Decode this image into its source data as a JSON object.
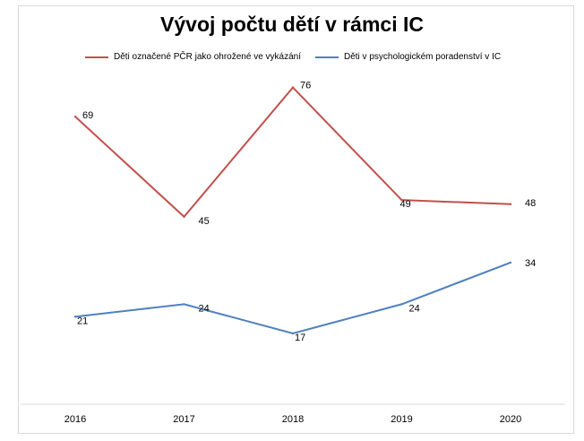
{
  "chart_data": {
    "type": "line",
    "title": "Vývoj počtu dětí v rámci IC",
    "categories": [
      "2016",
      "2017",
      "2018",
      "2019",
      "2020"
    ],
    "series": [
      {
        "name": "Děti označené PČR jako ohrožené ve vykázání",
        "values": [
          69,
          45,
          76,
          49,
          48
        ],
        "color": "#c0504d"
      },
      {
        "name": "Děti v psychologickém poradenství v IC",
        "values": [
          21,
          24,
          17,
          24,
          34
        ],
        "color": "#4f81bd"
      }
    ],
    "xlabel": "",
    "ylabel": "",
    "ylim": [
      0,
      95
    ],
    "grid": false,
    "legend_position": "top"
  }
}
